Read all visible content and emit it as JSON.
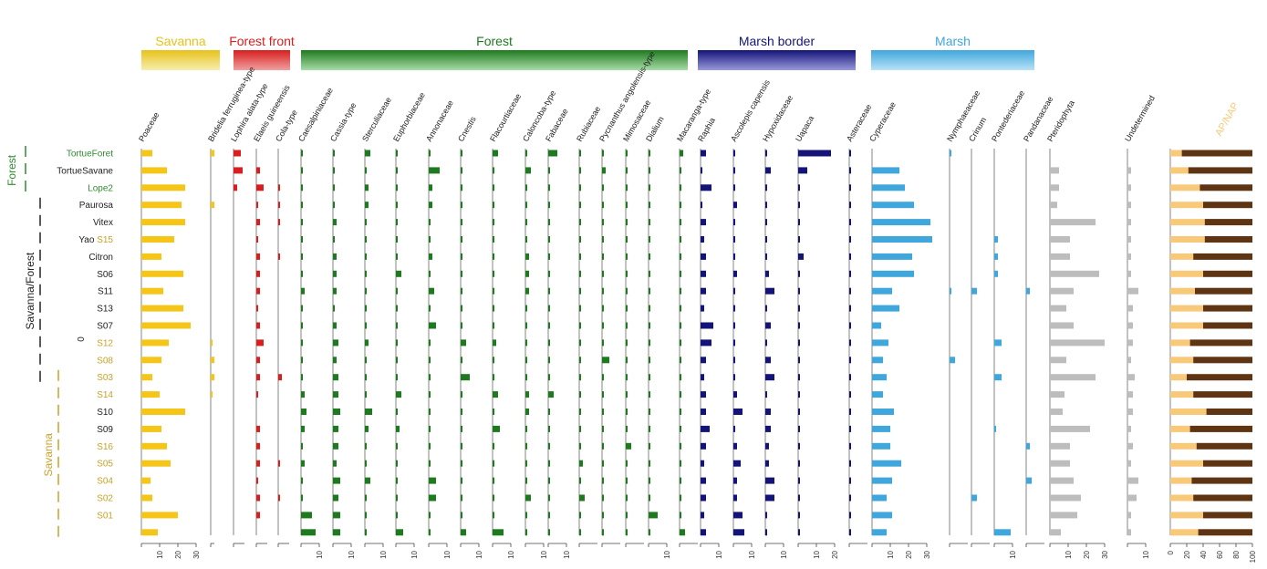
{
  "chart_data": {
    "type": "bar",
    "subtype": "pollen-diagram",
    "x_unit": "%",
    "samples": [
      {
        "label": "TortueForet",
        "color": "#2e8b2e"
      },
      {
        "label": "TortueSavane",
        "color": "#222222"
      },
      {
        "label": "Lope2",
        "color": "#2e8b2e"
      },
      {
        "label": "Paurosa",
        "color": "#222222"
      },
      {
        "label": "Vitex",
        "color": "#222222"
      },
      {
        "label": "Yao",
        "label_extra": "S15",
        "color": "#222222",
        "color_extra": "#c9a227"
      },
      {
        "label": "Citron",
        "color": "#222222"
      },
      {
        "label": "S06",
        "color": "#222222"
      },
      {
        "label": "S11",
        "color": "#222222"
      },
      {
        "label": "S13",
        "color": "#222222"
      },
      {
        "label": "S07",
        "color": "#222222"
      },
      {
        "label": "S12",
        "color": "#c9a227"
      },
      {
        "label": "S08",
        "color": "#c9a227"
      },
      {
        "label": "S03",
        "color": "#c9a227"
      },
      {
        "label": "S14",
        "color": "#c9a227"
      },
      {
        "label": "S10",
        "color": "#222222"
      },
      {
        "label": "S09",
        "color": "#222222"
      },
      {
        "label": "S16",
        "color": "#c9a227"
      },
      {
        "label": "S05",
        "color": "#c9a227"
      },
      {
        "label": "S04",
        "color": "#c9a227"
      },
      {
        "label": "S02",
        "color": "#c9a227"
      },
      {
        "label": "S01",
        "color": "#c9a227"
      },
      {
        "label": "",
        "color": "#222222"
      }
    ],
    "groups": [
      {
        "name": "Savanna",
        "color": "#e8c21a",
        "gradient_to": "#f7eeb0",
        "from": 0,
        "to": 1
      },
      {
        "name": "Forest front",
        "color": "#d81e1e",
        "gradient_to": "#f0a0a0",
        "from": 2,
        "to": 5
      },
      {
        "name": "Forest",
        "color": "#1e7a1e",
        "gradient_to": "#a8dca8",
        "from": 6,
        "to": 22
      },
      {
        "name": "Marsh border",
        "color": "#141478",
        "gradient_to": "#9999dd",
        "from": 23,
        "to": 28
      },
      {
        "name": "Marsh",
        "color": "#3fa7dc",
        "gradient_to": "#b8e2f7",
        "from": 29,
        "to": 34
      }
    ],
    "taxa": [
      {
        "name": "Poaceae",
        "color": "#f5c518",
        "max": 30,
        "ticks": [
          10,
          20,
          30
        ],
        "values": [
          6,
          14,
          24,
          22,
          24,
          18,
          11,
          23,
          12,
          23,
          27,
          15,
          11,
          6,
          10,
          24,
          11,
          14,
          16,
          5,
          6,
          20,
          9
        ]
      },
      {
        "name": "Bridelia ferruginea-type",
        "color": "#f5c518",
        "max": 2,
        "ticks": [],
        "values": [
          2,
          0,
          0,
          2,
          0,
          0,
          0,
          0,
          0,
          0,
          0,
          1,
          2,
          2,
          1,
          0,
          0,
          0,
          0,
          0,
          0,
          0,
          0
        ]
      },
      {
        "name": "Lophira alata-type",
        "color": "#d81e1e",
        "max": 6,
        "ticks": [],
        "values": [
          4,
          5,
          2,
          0,
          0,
          0,
          0,
          0,
          0,
          0,
          0,
          0,
          0,
          0,
          0,
          0,
          0,
          0,
          0,
          0,
          0,
          0,
          0
        ]
      },
      {
        "name": "Elaeis guineensis",
        "color": "#d81e1e",
        "max": 6,
        "ticks": [],
        "values": [
          0,
          2,
          4,
          1,
          2,
          1,
          2,
          2,
          2,
          1,
          2,
          4,
          2,
          2,
          1,
          0,
          2,
          2,
          2,
          1,
          2,
          2,
          0
        ]
      },
      {
        "name": "Cola-type",
        "color": "#d81e1e",
        "max": 6,
        "ticks": [],
        "values": [
          0,
          0,
          1,
          1,
          1,
          0,
          1,
          0,
          0,
          0,
          0,
          0,
          0,
          2,
          0,
          0,
          0,
          0,
          1,
          0,
          1,
          0,
          0
        ]
      },
      {
        "name": "Caesalpiniaceae",
        "color": "#1e7a1e",
        "max": 10,
        "ticks": [
          10
        ],
        "values": [
          1,
          1,
          1,
          1,
          1,
          1,
          1,
          1,
          2,
          1,
          1,
          1,
          1,
          1,
          2,
          3,
          2,
          1,
          2,
          1,
          1,
          6,
          8
        ]
      },
      {
        "name": "Cassia-type",
        "color": "#1e7a1e",
        "max": 10,
        "ticks": [
          10
        ],
        "values": [
          1,
          1,
          1,
          1,
          2,
          1,
          2,
          2,
          2,
          1,
          2,
          3,
          2,
          3,
          3,
          4,
          3,
          3,
          2,
          4,
          3,
          4,
          4
        ]
      },
      {
        "name": "Sterculiaceae",
        "color": "#1e7a1e",
        "max": 10,
        "ticks": [
          10
        ],
        "values": [
          3,
          1,
          2,
          2,
          1,
          1,
          1,
          1,
          1,
          1,
          1,
          2,
          1,
          1,
          1,
          4,
          2,
          1,
          1,
          3,
          1,
          1,
          1
        ]
      },
      {
        "name": "Euphorbiaceae",
        "color": "#1e7a1e",
        "max": 10,
        "ticks": [
          10
        ],
        "values": [
          1,
          1,
          1,
          1,
          1,
          1,
          1,
          3,
          1,
          1,
          1,
          1,
          1,
          1,
          3,
          1,
          2,
          1,
          1,
          1,
          1,
          1,
          4
        ]
      },
      {
        "name": "Annonaceae",
        "color": "#1e7a1e",
        "max": 10,
        "ticks": [
          10
        ],
        "values": [
          1,
          6,
          2,
          2,
          1,
          1,
          2,
          1,
          3,
          1,
          4,
          1,
          1,
          1,
          1,
          1,
          1,
          1,
          1,
          4,
          4,
          1,
          1
        ]
      },
      {
        "name": "Cnestis",
        "color": "#1e7a1e",
        "max": 10,
        "ticks": [
          10
        ],
        "values": [
          1,
          1,
          1,
          1,
          1,
          1,
          1,
          1,
          1,
          1,
          1,
          3,
          1,
          5,
          1,
          1,
          1,
          1,
          1,
          1,
          1,
          1,
          3
        ]
      },
      {
        "name": "Flacourtiaceae",
        "color": "#1e7a1e",
        "max": 10,
        "ticks": [
          10
        ],
        "values": [
          3,
          1,
          1,
          1,
          1,
          1,
          1,
          1,
          1,
          1,
          1,
          2,
          1,
          1,
          3,
          1,
          4,
          1,
          1,
          1,
          1,
          1,
          6
        ]
      },
      {
        "name": "Caloncoba-type",
        "color": "#1e7a1e",
        "max": 10,
        "ticks": [
          10
        ],
        "values": [
          1,
          3,
          1,
          1,
          1,
          1,
          2,
          2,
          2,
          1,
          1,
          1,
          1,
          1,
          2,
          2,
          1,
          1,
          1,
          1,
          3,
          1,
          1
        ]
      },
      {
        "name": "Fabaceae",
        "color": "#1e7a1e",
        "max": 10,
        "ticks": [
          10
        ],
        "values": [
          5,
          1,
          1,
          1,
          1,
          1,
          1,
          1,
          1,
          1,
          1,
          1,
          1,
          1,
          3,
          1,
          1,
          1,
          1,
          1,
          1,
          1,
          1
        ]
      },
      {
        "name": "Rubiaceae",
        "color": "#1e7a1e",
        "max": 10,
        "ticks": [],
        "values": [
          1,
          1,
          1,
          1,
          1,
          1,
          1,
          1,
          1,
          1,
          1,
          1,
          1,
          1,
          1,
          1,
          1,
          1,
          2,
          1,
          3,
          1,
          1
        ]
      },
      {
        "name": "Pycnanthus angolensis-type",
        "color": "#1e7a1e",
        "max": 10,
        "ticks": [],
        "values": [
          1,
          2,
          1,
          1,
          1,
          1,
          1,
          1,
          1,
          1,
          1,
          1,
          4,
          1,
          1,
          1,
          1,
          1,
          1,
          1,
          1,
          1,
          1
        ]
      },
      {
        "name": "Mimosaceae",
        "color": "#1e7a1e",
        "max": 10,
        "ticks": [],
        "values": [
          1,
          1,
          1,
          1,
          1,
          1,
          1,
          1,
          1,
          1,
          1,
          1,
          1,
          1,
          1,
          1,
          1,
          3,
          1,
          1,
          1,
          1,
          1
        ]
      },
      {
        "name": "Dialium",
        "color": "#1e7a1e",
        "max": 10,
        "ticks": [
          10
        ],
        "values": [
          1,
          1,
          1,
          1,
          1,
          1,
          1,
          1,
          1,
          1,
          1,
          1,
          1,
          1,
          1,
          1,
          1,
          1,
          1,
          1,
          1,
          5,
          1
        ]
      },
      {
        "name": "Macaranga-type",
        "color": "#1e7a1e",
        "max": 10,
        "ticks": [],
        "values": [
          2,
          1,
          1,
          1,
          1,
          1,
          1,
          1,
          1,
          1,
          1,
          1,
          1,
          1,
          1,
          1,
          1,
          1,
          1,
          1,
          1,
          1,
          3
        ]
      },
      {
        "name": "Raphia",
        "color": "#141478",
        "max": 10,
        "ticks": [
          10
        ],
        "values": [
          3,
          1,
          6,
          1,
          3,
          2,
          3,
          3,
          3,
          2,
          7,
          6,
          3,
          2,
          3,
          3,
          5,
          3,
          2,
          3,
          3,
          2,
          3
        ]
      },
      {
        "name": "Ascolepis capensis",
        "color": "#141478",
        "max": 10,
        "ticks": [
          10
        ],
        "values": [
          1,
          1,
          1,
          2,
          1,
          1,
          1,
          2,
          1,
          1,
          1,
          1,
          1,
          1,
          2,
          5,
          1,
          2,
          4,
          2,
          2,
          5,
          6
        ]
      },
      {
        "name": "Hypoxidaceae",
        "color": "#141478",
        "max": 10,
        "ticks": [
          10
        ],
        "values": [
          1,
          3,
          1,
          1,
          1,
          1,
          1,
          2,
          5,
          1,
          3,
          1,
          3,
          5,
          1,
          3,
          3,
          2,
          2,
          5,
          5,
          1,
          1
        ]
      },
      {
        "name": "Uapaca",
        "color": "#141478",
        "max": 20,
        "ticks": [
          10,
          20
        ],
        "values": [
          18,
          5,
          1,
          1,
          1,
          1,
          3,
          1,
          1,
          1,
          1,
          1,
          1,
          1,
          1,
          1,
          1,
          1,
          1,
          1,
          1,
          1,
          1
        ]
      },
      {
        "name": "Asteraceae",
        "color": "#141478",
        "max": 10,
        "ticks": [],
        "values": [
          1,
          1,
          1,
          1,
          1,
          1,
          1,
          1,
          1,
          1,
          1,
          1,
          1,
          1,
          1,
          1,
          1,
          1,
          1,
          1,
          1,
          1,
          1
        ]
      },
      {
        "name": "Cyperaceae",
        "color": "#3fa7dc",
        "max": 30,
        "ticks": [
          10,
          20,
          30
        ],
        "values": [
          0,
          15,
          18,
          23,
          32,
          33,
          22,
          23,
          11,
          15,
          5,
          9,
          6,
          8,
          6,
          12,
          10,
          10,
          16,
          11,
          8,
          11,
          8
        ]
      },
      {
        "name": "Nymphaeaceae",
        "color": "#3fa7dc",
        "max": 10,
        "ticks": [],
        "values": [
          1,
          0,
          0,
          0,
          0,
          0,
          0,
          0,
          1,
          0,
          0,
          0,
          3,
          0,
          0,
          0,
          0,
          0,
          0,
          0,
          0,
          0,
          0
        ]
      },
      {
        "name": "Crinum",
        "color": "#3fa7dc",
        "max": 10,
        "ticks": [],
        "values": [
          0,
          0,
          0,
          0,
          0,
          0,
          0,
          0,
          3,
          0,
          0,
          0,
          0,
          0,
          0,
          0,
          0,
          0,
          0,
          0,
          3,
          0,
          0
        ]
      },
      {
        "name": "Pontederiaceae",
        "color": "#3fa7dc",
        "max": 10,
        "ticks": [
          10
        ],
        "values": [
          0,
          0,
          0,
          0,
          0,
          2,
          2,
          2,
          0,
          0,
          0,
          4,
          0,
          4,
          0,
          0,
          1,
          0,
          0,
          0,
          0,
          0,
          9
        ]
      },
      {
        "name": "Pandanaceae",
        "color": "#3fa7dc",
        "max": 10,
        "ticks": [],
        "values": [
          0,
          0,
          0,
          0,
          0,
          0,
          0,
          0,
          2,
          0,
          0,
          0,
          0,
          0,
          0,
          0,
          0,
          2,
          0,
          3,
          0,
          0,
          0
        ]
      },
      {
        "name": "Pteridophyta",
        "color": "#bdbdbd",
        "max": 30,
        "ticks": [
          10,
          20,
          30
        ],
        "values": [
          0,
          5,
          5,
          4,
          25,
          11,
          11,
          27,
          13,
          9,
          13,
          30,
          9,
          25,
          8,
          7,
          22,
          11,
          11,
          13,
          17,
          15,
          6
        ]
      },
      {
        "name": "Undetermined",
        "color": "#bdbdbd",
        "max": 10,
        "ticks": [
          10
        ],
        "values": [
          0,
          2,
          2,
          2,
          2,
          2,
          2,
          2,
          6,
          3,
          3,
          3,
          2,
          4,
          3,
          3,
          2,
          3,
          2,
          6,
          5,
          2,
          2
        ]
      }
    ],
    "ap_nap": {
      "label": "AP/NAP",
      "ticks": [
        0,
        20,
        40,
        60,
        80,
        100
      ],
      "colors": {
        "ap": "#f8c979",
        "nap": "#5e3413"
      },
      "ap_values": [
        14,
        22,
        36,
        40,
        42,
        42,
        28,
        40,
        30,
        40,
        40,
        24,
        28,
        20,
        28,
        44,
        24,
        32,
        40,
        26,
        28,
        40,
        34
      ]
    },
    "zones": [
      {
        "name": "Forest",
        "color": "#2e8b2e",
        "from_sample": 0,
        "to_sample": 2
      },
      {
        "name": "Savanna/Forest",
        "color": "#222222",
        "from_sample": 3,
        "to_sample": 13
      },
      {
        "name": "Savanna",
        "color": "#c9a227",
        "from_sample": 13,
        "to_sample": 22
      }
    ],
    "marker": "0"
  }
}
